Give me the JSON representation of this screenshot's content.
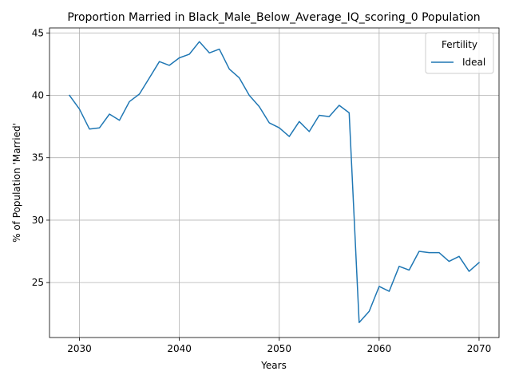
{
  "chart_data": {
    "type": "line",
    "title": "Proportion Married in Black_Male_Below_Average_IQ_scoring_0 Population",
    "xlabel": "Years",
    "ylabel": "% of Population 'Married'",
    "xlim": [
      2027,
      2072
    ],
    "ylim": [
      20.6,
      45.4
    ],
    "xticks": [
      2030,
      2040,
      2050,
      2060,
      2070
    ],
    "yticks": [
      25,
      30,
      35,
      40,
      45
    ],
    "grid": true,
    "legend": {
      "title": "Fertility",
      "placement": "top-right"
    },
    "series": [
      {
        "name": "Ideal",
        "color": "#1f77b4",
        "x": [
          2029,
          2030,
          2031,
          2032,
          2033,
          2034,
          2035,
          2036,
          2037,
          2038,
          2039,
          2040,
          2041,
          2042,
          2043,
          2044,
          2045,
          2046,
          2047,
          2048,
          2049,
          2050,
          2051,
          2052,
          2053,
          2054,
          2055,
          2056,
          2057,
          2058,
          2059,
          2060,
          2061,
          2062,
          2063,
          2064,
          2065,
          2066,
          2067,
          2068,
          2069,
          2070
        ],
        "y": [
          40.0,
          38.9,
          37.3,
          37.4,
          38.5,
          38.0,
          39.5,
          40.1,
          41.4,
          42.7,
          42.4,
          43.0,
          43.3,
          44.3,
          43.4,
          43.7,
          42.1,
          41.4,
          40.0,
          39.1,
          37.8,
          37.4,
          36.7,
          37.9,
          37.1,
          38.4,
          38.3,
          39.2,
          38.6,
          21.8,
          22.7,
          24.7,
          24.3,
          26.3,
          26.0,
          27.5,
          27.4,
          27.4,
          26.7,
          27.1,
          25.9,
          26.6
        ]
      }
    ]
  }
}
